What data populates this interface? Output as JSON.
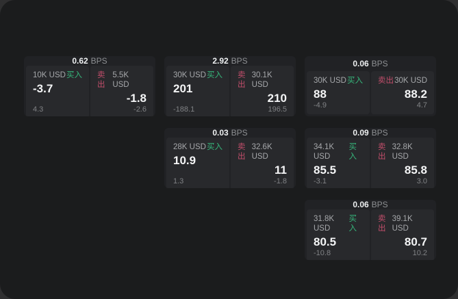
{
  "colors": {
    "panel_bg": "#1b1c1d",
    "card_bg": "#212225",
    "subpanel_bg": "#28292c",
    "buy": "#36b77b",
    "sell": "#c24e6b"
  },
  "labels": {
    "bps": "BPS",
    "buy": "买入",
    "sell": "卖出"
  },
  "cards": [
    {
      "row": 1,
      "col": 1,
      "bps": "0.62",
      "buy": {
        "amount": "10K USD",
        "price": "-3.7",
        "delta": "4.3"
      },
      "sell": {
        "amount": "5.5K USD",
        "price": "-1.8",
        "delta": "-2.6"
      }
    },
    {
      "row": 1,
      "col": 2,
      "bps": "2.92",
      "buy": {
        "amount": "30K USD",
        "price": "201",
        "delta": "-188.1"
      },
      "sell": {
        "amount": "30.1K USD",
        "price": "210",
        "delta": "196.5"
      }
    },
    {
      "row": 1,
      "col": 3,
      "bps": "0.06",
      "buy": {
        "amount": "30K USD",
        "price": "88",
        "delta": "-4.9"
      },
      "sell": {
        "amount": "30K USD",
        "price": "88.2",
        "delta": "4.7"
      }
    },
    {
      "row": 2,
      "col": 2,
      "bps": "0.03",
      "buy": {
        "amount": "28K USD",
        "price": "10.9",
        "delta": "1.3"
      },
      "sell": {
        "amount": "32.6K USD",
        "price": "11",
        "delta": "-1.8"
      }
    },
    {
      "row": 2,
      "col": 3,
      "bps": "0.09",
      "buy": {
        "amount": "34.1K USD",
        "price": "85.5",
        "delta": "-3.1"
      },
      "sell": {
        "amount": "32.8K USD",
        "price": "85.8",
        "delta": "3.0"
      }
    },
    {
      "row": 3,
      "col": 3,
      "bps": "0.06",
      "buy": {
        "amount": "31.8K USD",
        "price": "80.5",
        "delta": "-10.8"
      },
      "sell": {
        "amount": "39.1K USD",
        "price": "80.7",
        "delta": "10.2"
      }
    }
  ]
}
